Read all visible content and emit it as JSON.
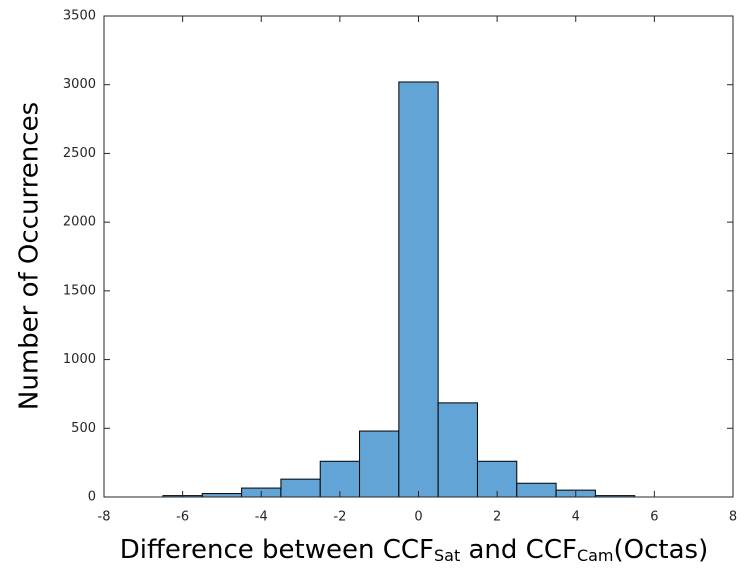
{
  "chart_data": {
    "type": "histogram",
    "xlabel": [
      "Difference between CCF",
      "Sat",
      " and CCF",
      "Cam",
      "(Octas)"
    ],
    "ylabel": "Number of Occurrences",
    "bins": [
      -6.5,
      -5.5,
      -4.5,
      -3.5,
      -2.5,
      -1.5,
      -0.5,
      0.5,
      1.5,
      2.5,
      3.5,
      4.5,
      5.5
    ],
    "values": [
      10,
      25,
      65,
      130,
      260,
      480,
      3020,
      685,
      260,
      100,
      50,
      10
    ],
    "color": "#62a4d6",
    "xlim": [
      -8,
      8
    ],
    "xticks": [
      -8,
      -6,
      -4,
      -2,
      0,
      2,
      4,
      6,
      8
    ],
    "ylim": [
      0,
      3500
    ],
    "yticks": [
      0,
      500,
      1000,
      1500,
      2000,
      2500,
      3000,
      3500
    ]
  }
}
